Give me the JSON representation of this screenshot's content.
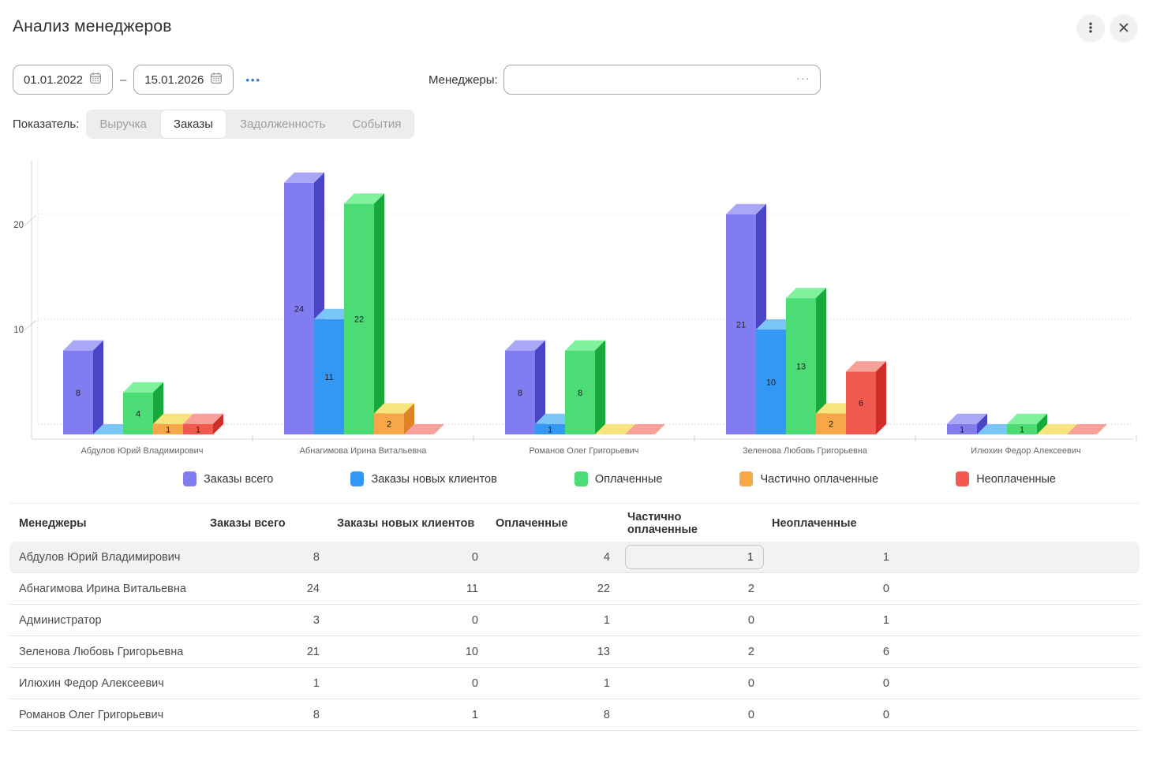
{
  "header": {
    "title": "Анализ менеджеров"
  },
  "window_icons": {
    "menu": "kebab-vertical",
    "close": "x"
  },
  "filters": {
    "date_from": "01.01.2022",
    "date_to": "15.01.2026",
    "range_separator": "–",
    "more_dates_label": "•••",
    "managers_label": "Менеджеры:",
    "managers_value": "",
    "managers_more_label": "···"
  },
  "indicator": {
    "label": "Показатель:",
    "tabs": [
      {
        "label": "Выручка",
        "active": false
      },
      {
        "label": "Заказы",
        "active": true
      },
      {
        "label": "Задолженность",
        "active": false
      },
      {
        "label": "События",
        "active": false
      }
    ]
  },
  "chart_data": {
    "type": "bar",
    "style": "3d-grouped",
    "title": "",
    "xlabel": "",
    "ylabel": "",
    "categories": [
      "Абдулов Юрий Владимирович",
      "Абнагимова Ирина Витальевна",
      "Романов Олег Григорьевич",
      "Зеленова Любовь Григорьевна",
      "Илюхин Федор Алексеевич"
    ],
    "series": [
      {
        "name": "Заказы всего",
        "color": "#817df0",
        "top_color": "#aba7f7",
        "side_color": "#4a44c6",
        "values": [
          8,
          24,
          8,
          21,
          1
        ]
      },
      {
        "name": "Заказы новых клиентов",
        "color": "#3398f4",
        "top_color": "#7cc5f8",
        "side_color": "#1a71d4",
        "values": [
          0,
          11,
          1,
          10,
          0
        ]
      },
      {
        "name": "Оплаченные",
        "color": "#4cdc75",
        "top_color": "#80f29d",
        "side_color": "#17a93c",
        "values": [
          4,
          22,
          8,
          13,
          1
        ]
      },
      {
        "name": "Частично оплаченные",
        "color": "#f7a748",
        "top_color": "#f8e47e",
        "side_color": "#df8426",
        "values": [
          1,
          2,
          0,
          2,
          0
        ]
      },
      {
        "name": "Неоплаченные",
        "color": "#f2594f",
        "top_color": "#f8a19b",
        "side_color": "#ce2d28",
        "values": [
          1,
          0,
          0,
          6,
          0
        ]
      }
    ],
    "y_ticks": [
      10,
      20
    ],
    "ylim": [
      0,
      26
    ],
    "grid": "dotted-horizontal",
    "value_labels": "shown-on-bars",
    "legend_position": "bottom"
  },
  "table": {
    "headers": [
      "Менеджеры",
      "Заказы всего",
      "Заказы новых клиентов",
      "Оплаченные",
      "Частично оплаченные",
      "Неоплаченные"
    ],
    "rows": [
      {
        "manager": "Абдулов Юрий Владимирович",
        "values": [
          "8",
          "0",
          "4",
          "1",
          "1"
        ],
        "highlighted": true,
        "editing_column": 3,
        "editing_value": "1"
      },
      {
        "manager": "Абнагимова Ирина Витальевна",
        "values": [
          "24",
          "11",
          "22",
          "2",
          "0"
        ]
      },
      {
        "manager": "Администратор",
        "values": [
          "3",
          "0",
          "1",
          "0",
          "1"
        ]
      },
      {
        "manager": "Зеленова Любовь Григорьевна",
        "values": [
          "21",
          "10",
          "13",
          "2",
          "6"
        ]
      },
      {
        "manager": "Илюхин Федор Алексеевич",
        "values": [
          "1",
          "0",
          "1",
          "0",
          "0"
        ]
      },
      {
        "manager": "Романов Олег Григорьевич",
        "values": [
          "8",
          "1",
          "8",
          "0",
          "0"
        ]
      }
    ]
  }
}
